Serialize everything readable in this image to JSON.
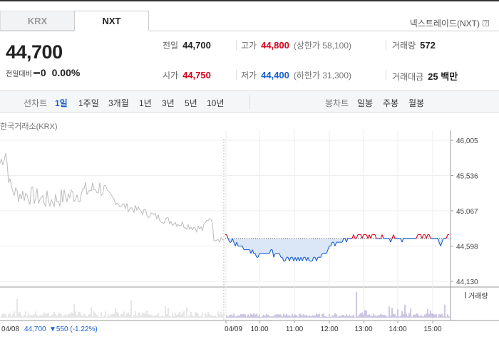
{
  "tabs": [
    {
      "label": "KRX"
    },
    {
      "label": "NXT"
    }
  ],
  "nxt_label": "넥스트레이드(NXT)",
  "help_glyph": "?",
  "price": "44,700",
  "change": {
    "label": "전일대비",
    "value": "0",
    "pct": "0.00%"
  },
  "info": {
    "prev": {
      "label": "전일",
      "value": "44,700"
    },
    "high": {
      "label": "고가",
      "value": "44,800",
      "sub": "(상한가 58,100)"
    },
    "volume": {
      "label": "거래량",
      "value": "572"
    },
    "open": {
      "label": "시가",
      "value": "44,750"
    },
    "low": {
      "label": "저가",
      "value": "44,400",
      "sub": "(하한가 31,300)"
    },
    "amount": {
      "label": "거래대금",
      "value": "25 백만"
    }
  },
  "periods": {
    "label": "선차트",
    "items": [
      "1일",
      "1주일",
      "3개월",
      "1년",
      "3년",
      "5년",
      "10년"
    ],
    "active": 0
  },
  "candles": {
    "label": "봉차트",
    "items": [
      "일봉",
      "주봉",
      "월봉"
    ]
  },
  "source_label": "한국거래소(KRX)",
  "chart_data": {
    "type": "line",
    "title": "",
    "y_ticks": [
      "46,005",
      "45,536",
      "45,067",
      "44,598",
      "44,130"
    ],
    "ylim": [
      44130,
      46005
    ],
    "x_ticks": [
      "04/09",
      "10:00",
      "11:00",
      "12:00",
      "13:00",
      "14:00",
      "15:00"
    ],
    "reference_price": 44700,
    "previous_day_label": "04/08",
    "previous_day_close": "44,700",
    "previous_day_change": "▼550 (-1.22%)",
    "volume_legend": "거래량",
    "colors": {
      "up": "#d6001c",
      "down": "#1960d1",
      "prev": "#bbbbbb",
      "fill": "#dbe7f7",
      "volume": "#9a8ec4"
    }
  }
}
